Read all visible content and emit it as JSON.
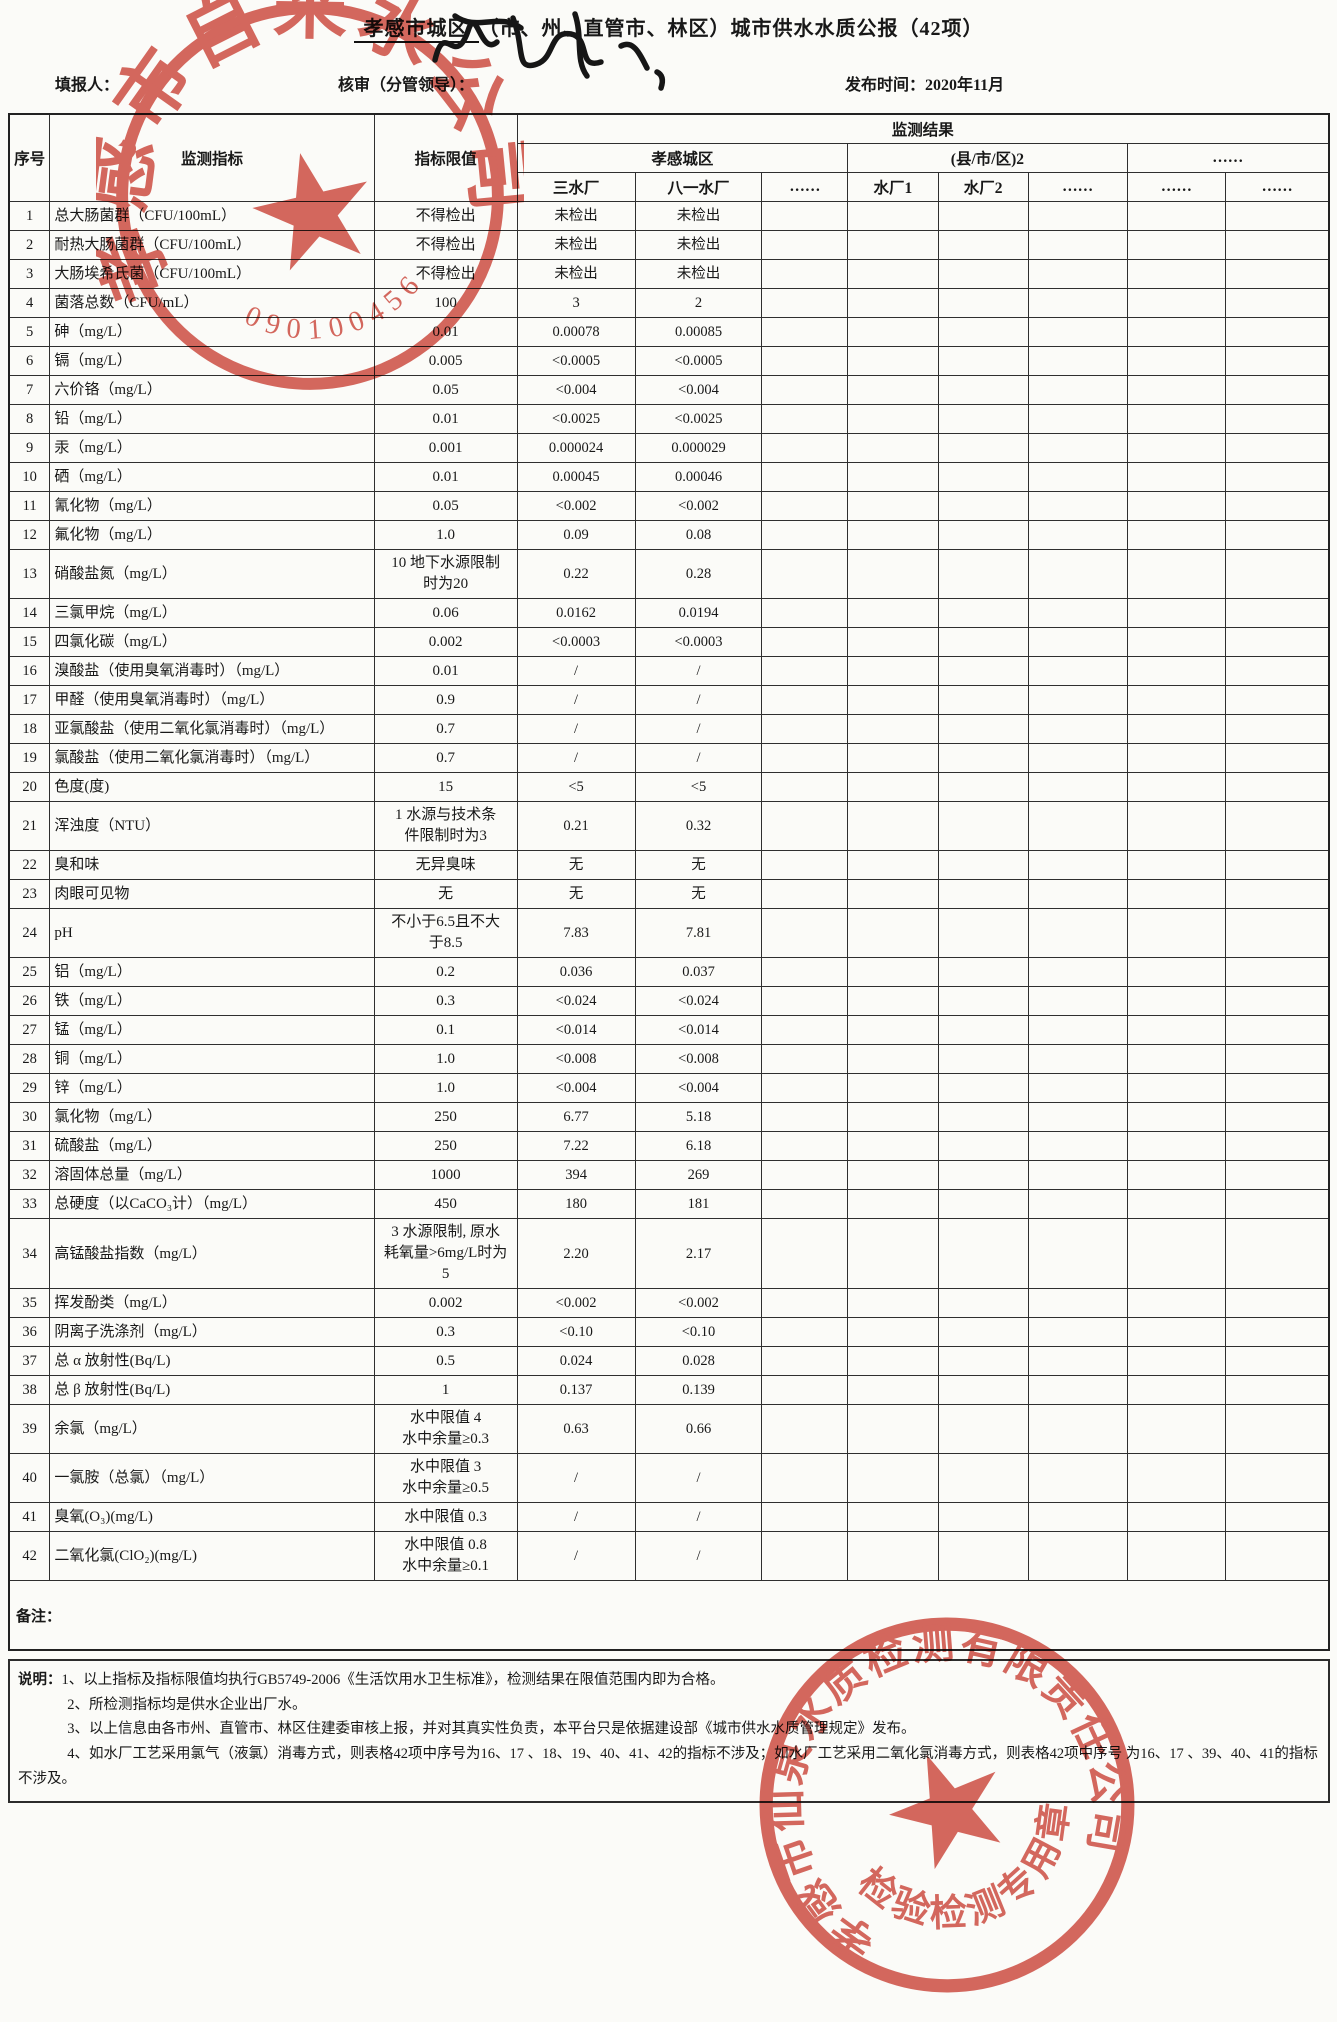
{
  "title": {
    "region": "孝感市城区",
    "rest": "（市、州、直管市、林区）城市供水水质公报（42项）"
  },
  "meta": {
    "filler_label": "填报人：",
    "reviewer_label": "核审（分管领导）：",
    "publish_label": "发布时间：",
    "publish_value": "2020年11月"
  },
  "table": {
    "header": {
      "serial": "序号",
      "indicator": "监测指标",
      "limit": "指标限值",
      "result_group": "监测结果",
      "region_groups": [
        {
          "label": "孝感城区",
          "span": 3
        },
        {
          "label": "(县/市/区)2",
          "span": 3
        },
        {
          "label": "……",
          "span": 2
        }
      ],
      "plants": [
        "三水厂",
        "八一水厂",
        "……",
        "水厂1",
        "水厂2",
        "……",
        "……",
        "……"
      ]
    },
    "rows": [
      {
        "no": "1",
        "indicator": "总大肠菌群（CFU/100mL）",
        "limit": "不得检出",
        "values": [
          "未检出",
          "未检出",
          "",
          "",
          "",
          "",
          "",
          ""
        ]
      },
      {
        "no": "2",
        "indicator": "耐热大肠菌群（CFU/100mL）",
        "limit": "不得检出",
        "values": [
          "未检出",
          "未检出",
          "",
          "",
          "",
          "",
          "",
          ""
        ]
      },
      {
        "no": "3",
        "indicator": "大肠埃希氏菌（CFU/100mL）",
        "limit": "不得检出",
        "values": [
          "未检出",
          "未检出",
          "",
          "",
          "",
          "",
          "",
          ""
        ]
      },
      {
        "no": "4",
        "indicator": "菌落总数（CFU/mL）",
        "limit": "100",
        "values": [
          "3",
          "2",
          "",
          "",
          "",
          "",
          "",
          ""
        ]
      },
      {
        "no": "5",
        "indicator": "砷（mg/L）",
        "limit": "0.01",
        "values": [
          "0.00078",
          "0.00085",
          "",
          "",
          "",
          "",
          "",
          ""
        ]
      },
      {
        "no": "6",
        "indicator": "镉（mg/L）",
        "limit": "0.005",
        "values": [
          "<0.0005",
          "<0.0005",
          "",
          "",
          "",
          "",
          "",
          ""
        ]
      },
      {
        "no": "7",
        "indicator": "六价铬（mg/L）",
        "limit": "0.05",
        "values": [
          "<0.004",
          "<0.004",
          "",
          "",
          "",
          "",
          "",
          ""
        ]
      },
      {
        "no": "8",
        "indicator": "铅（mg/L）",
        "limit": "0.01",
        "values": [
          "<0.0025",
          "<0.0025",
          "",
          "",
          "",
          "",
          "",
          ""
        ]
      },
      {
        "no": "9",
        "indicator": "汞（mg/L）",
        "limit": "0.001",
        "values": [
          "0.000024",
          "0.000029",
          "",
          "",
          "",
          "",
          "",
          ""
        ]
      },
      {
        "no": "10",
        "indicator": "硒（mg/L）",
        "limit": "0.01",
        "values": [
          "0.00045",
          "0.00046",
          "",
          "",
          "",
          "",
          "",
          ""
        ]
      },
      {
        "no": "11",
        "indicator": "氰化物（mg/L）",
        "limit": "0.05",
        "values": [
          "<0.002",
          "<0.002",
          "",
          "",
          "",
          "",
          "",
          ""
        ]
      },
      {
        "no": "12",
        "indicator": "氟化物（mg/L）",
        "limit": "1.0",
        "values": [
          "0.09",
          "0.08",
          "",
          "",
          "",
          "",
          "",
          ""
        ]
      },
      {
        "no": "13",
        "indicator": "硝酸盐氮（mg/L）",
        "limit": "10 地下水源限制\n时为20",
        "values": [
          "0.22",
          "0.28",
          "",
          "",
          "",
          "",
          "",
          ""
        ]
      },
      {
        "no": "14",
        "indicator": "三氯甲烷（mg/L）",
        "limit": "0.06",
        "values": [
          "0.0162",
          "0.0194",
          "",
          "",
          "",
          "",
          "",
          ""
        ]
      },
      {
        "no": "15",
        "indicator": "四氯化碳（mg/L）",
        "limit": "0.002",
        "values": [
          "<0.0003",
          "<0.0003",
          "",
          "",
          "",
          "",
          "",
          ""
        ]
      },
      {
        "no": "16",
        "indicator": "溴酸盐（使用臭氧消毒时）（mg/L）",
        "limit": "0.01",
        "values": [
          "/",
          "/",
          "",
          "",
          "",
          "",
          "",
          ""
        ]
      },
      {
        "no": "17",
        "indicator": "甲醛（使用臭氧消毒时）（mg/L）",
        "limit": "0.9",
        "values": [
          "/",
          "/",
          "",
          "",
          "",
          "",
          "",
          ""
        ]
      },
      {
        "no": "18",
        "indicator": "亚氯酸盐（使用二氧化氯消毒时）（mg/L）",
        "limit": "0.7",
        "values": [
          "/",
          "/",
          "",
          "",
          "",
          "",
          "",
          ""
        ]
      },
      {
        "no": "19",
        "indicator": "氯酸盐（使用二氧化氯消毒时）（mg/L）",
        "limit": "0.7",
        "values": [
          "/",
          "/",
          "",
          "",
          "",
          "",
          "",
          ""
        ]
      },
      {
        "no": "20",
        "indicator": "色度(度)",
        "limit": "15",
        "values": [
          "<5",
          "<5",
          "",
          "",
          "",
          "",
          "",
          ""
        ]
      },
      {
        "no": "21",
        "indicator": "浑浊度（NTU）",
        "limit": "1  水源与技术条\n件限制时为3",
        "values": [
          "0.21",
          "0.32",
          "",
          "",
          "",
          "",
          "",
          ""
        ]
      },
      {
        "no": "22",
        "indicator": "臭和味",
        "limit": "无异臭味",
        "values": [
          "无",
          "无",
          "",
          "",
          "",
          "",
          "",
          ""
        ]
      },
      {
        "no": "23",
        "indicator": "肉眼可见物",
        "limit": "无",
        "values": [
          "无",
          "无",
          "",
          "",
          "",
          "",
          "",
          ""
        ]
      },
      {
        "no": "24",
        "indicator": "pH",
        "limit": "不小于6.5且不大\n于8.5",
        "values": [
          "7.83",
          "7.81",
          "",
          "",
          "",
          "",
          "",
          ""
        ]
      },
      {
        "no": "25",
        "indicator": "铝（mg/L）",
        "limit": "0.2",
        "values": [
          "0.036",
          "0.037",
          "",
          "",
          "",
          "",
          "",
          ""
        ]
      },
      {
        "no": "26",
        "indicator": "铁（mg/L）",
        "limit": "0.3",
        "values": [
          "<0.024",
          "<0.024",
          "",
          "",
          "",
          "",
          "",
          ""
        ]
      },
      {
        "no": "27",
        "indicator": "锰（mg/L）",
        "limit": "0.1",
        "values": [
          "<0.014",
          "<0.014",
          "",
          "",
          "",
          "",
          "",
          ""
        ]
      },
      {
        "no": "28",
        "indicator": "铜（mg/L）",
        "limit": "1.0",
        "values": [
          "<0.008",
          "<0.008",
          "",
          "",
          "",
          "",
          "",
          ""
        ]
      },
      {
        "no": "29",
        "indicator": "锌（mg/L）",
        "limit": "1.0",
        "values": [
          "<0.004",
          "<0.004",
          "",
          "",
          "",
          "",
          "",
          ""
        ]
      },
      {
        "no": "30",
        "indicator": "氯化物（mg/L）",
        "limit": "250",
        "values": [
          "6.77",
          "5.18",
          "",
          "",
          "",
          "",
          "",
          ""
        ]
      },
      {
        "no": "31",
        "indicator": "硫酸盐（mg/L）",
        "limit": "250",
        "values": [
          "7.22",
          "6.18",
          "",
          "",
          "",
          "",
          "",
          ""
        ]
      },
      {
        "no": "32",
        "indicator": "溶固体总量（mg/L）",
        "limit": "1000",
        "values": [
          "394",
          "269",
          "",
          "",
          "",
          "",
          "",
          ""
        ]
      },
      {
        "no": "33",
        "indicator": "总硬度（以CaCO₃计）（mg/L）",
        "limit": "450",
        "values": [
          "180",
          "181",
          "",
          "",
          "",
          "",
          "",
          ""
        ]
      },
      {
        "no": "34",
        "indicator": "高锰酸盐指数（mg/L）",
        "limit": "3 水源限制, 原水\n耗氧量>6mg/L时为\n5",
        "values": [
          "2.20",
          "2.17",
          "",
          "",
          "",
          "",
          "",
          ""
        ]
      },
      {
        "no": "35",
        "indicator": "挥发酚类（mg/L）",
        "limit": "0.002",
        "values": [
          "<0.002",
          "<0.002",
          "",
          "",
          "",
          "",
          "",
          ""
        ]
      },
      {
        "no": "36",
        "indicator": "阴离子洗涤剂（mg/L）",
        "limit": "0.3",
        "values": [
          "<0.10",
          "<0.10",
          "",
          "",
          "",
          "",
          "",
          ""
        ]
      },
      {
        "no": "37",
        "indicator": "总 α 放射性(Bq/L)",
        "limit": "0.5",
        "values": [
          "0.024",
          "0.028",
          "",
          "",
          "",
          "",
          "",
          ""
        ]
      },
      {
        "no": "38",
        "indicator": "总 β 放射性(Bq/L)",
        "limit": "1",
        "values": [
          "0.137",
          "0.139",
          "",
          "",
          "",
          "",
          "",
          ""
        ]
      },
      {
        "no": "39",
        "indicator": "余氯（mg/L）",
        "limit": "水中限值 4\n水中余量≥0.3",
        "values": [
          "0.63",
          "0.66",
          "",
          "",
          "",
          "",
          "",
          ""
        ]
      },
      {
        "no": "40",
        "indicator": "一氯胺（总氯）（mg/L）",
        "limit": "水中限值 3\n水中余量≥0.5",
        "values": [
          "/",
          "/",
          "",
          "",
          "",
          "",
          "",
          ""
        ]
      },
      {
        "no": "41",
        "indicator": "臭氧(O₃)(mg/L)",
        "limit": "水中限值 0.3",
        "values": [
          "/",
          "/",
          "",
          "",
          "",
          "",
          "",
          ""
        ]
      },
      {
        "no": "42",
        "indicator": "二氧化氯(ClO₂)(mg/L)",
        "limit": "水中限值 0.8\n水中余量≥0.1",
        "values": [
          "/",
          "/",
          "",
          "",
          "",
          "",
          "",
          ""
        ]
      }
    ]
  },
  "remark": {
    "label": "备注："
  },
  "notes": {
    "label": "说明：",
    "items": [
      "1、以上指标及指标限值均执行GB5749-2006《生活饮用水卫生标准》，检测结果在限值范围内即为合格。",
      "2、所检测指标均是供水企业出厂水。",
      "3、以上信息由各市州、直管市、林区住建委审核上报，并对其真实性负责，本平台只是依据建设部《城市供水水质管理规定》发布。",
      "4、如水厂工艺采用氯气（液氯）消毒方式，则表格42项中序号为16、17 、18、19、40、41、42的指标不涉及；如水厂工艺采用二氧化氯消毒方式，则表格42项中序号 为16、17 、39、40、41的指标不涉及。"
    ]
  },
  "stamps": {
    "company": {
      "text": "孝感市自来水公司",
      "number": "4209010045666"
    },
    "test": {
      "text": "孝感市仙泉水质检测有限责任公司",
      "subtext": "检验检测专用章"
    }
  }
}
